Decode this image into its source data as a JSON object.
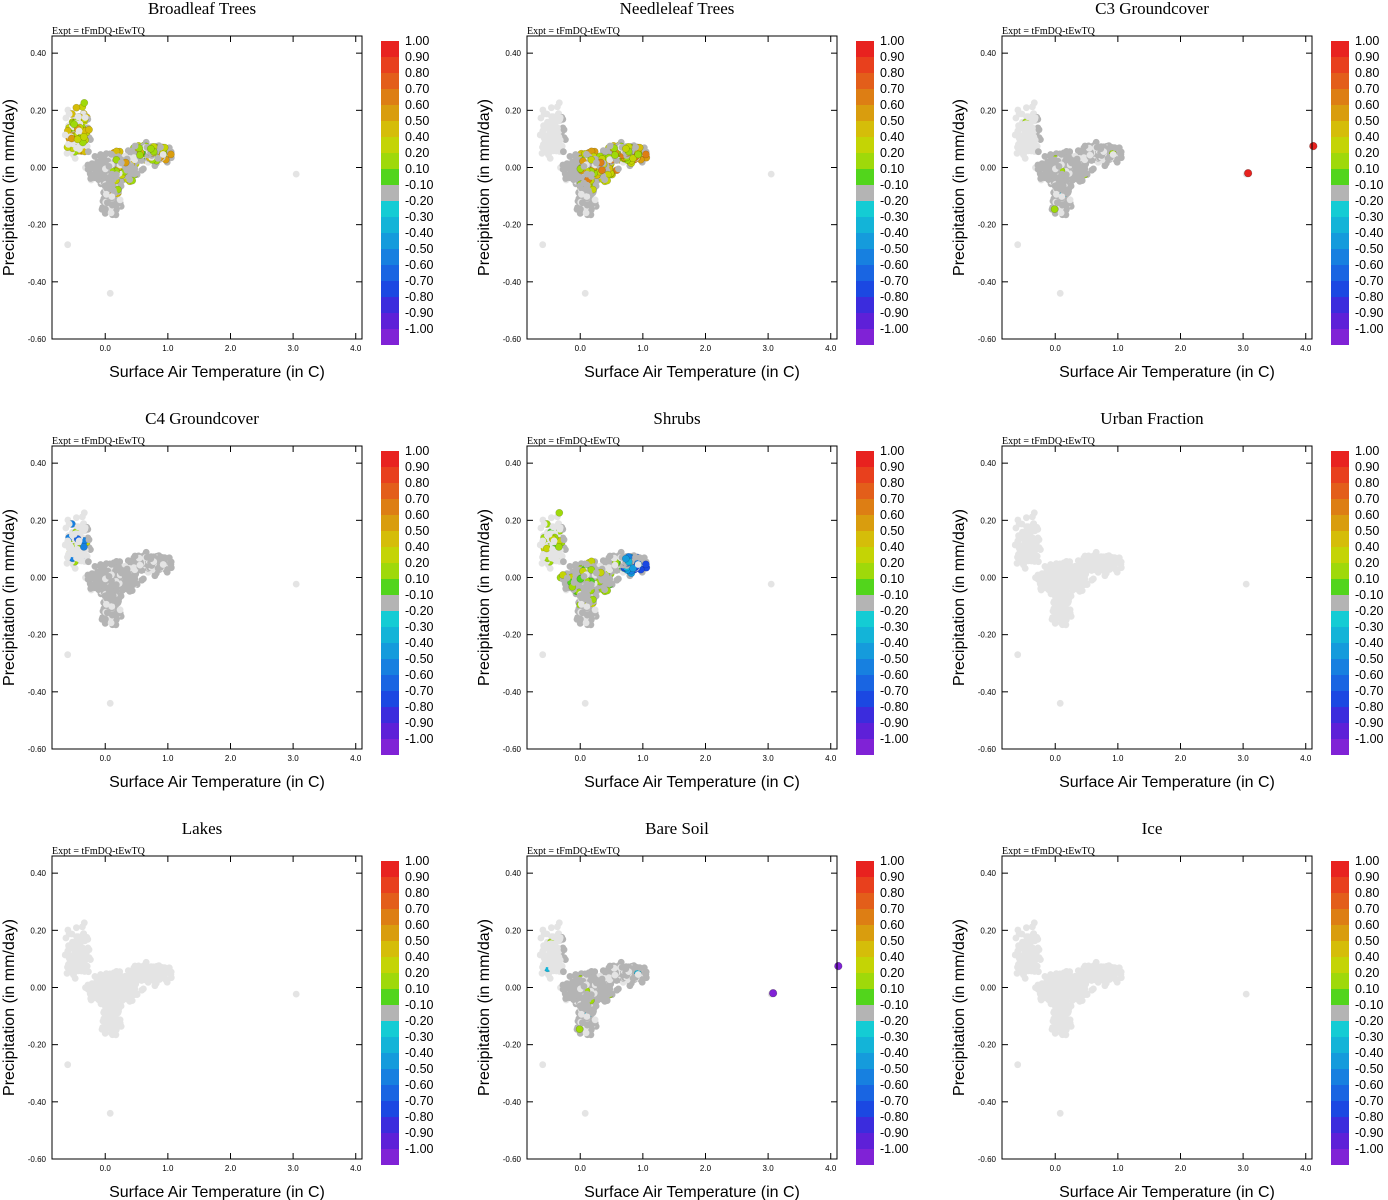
{
  "figure": {
    "x_label": "Surface Air Temperature (in C)",
    "y_label": "Precipitation (in mm/day)",
    "expt_label": "Expt = tFmDQ-tEwTQ"
  },
  "axes": {
    "xlim": [
      -0.85,
      4.1
    ],
    "ylim": [
      -0.6,
      0.46
    ],
    "xticks": [
      0.0,
      1.0,
      2.0,
      3.0,
      4.0
    ],
    "xtick_labels": [
      "0.0",
      "1.0",
      "2.0",
      "3.0",
      "4.0"
    ],
    "yticks": [
      -0.6,
      -0.4,
      -0.2,
      0.0,
      0.2,
      0.4
    ],
    "ytick_labels": [
      "-0.60",
      "-0.40",
      "-0.20",
      "0.00",
      "0.20",
      "0.40"
    ]
  },
  "colorbar": {
    "labels": [
      "1.00",
      "0.90",
      "0.80",
      "0.70",
      "0.60",
      "0.50",
      "0.40",
      "0.20",
      "0.10",
      "-0.10",
      "-0.20",
      "-0.30",
      "-0.40",
      "-0.50",
      "-0.60",
      "-0.70",
      "-0.80",
      "-0.90",
      "-1.00"
    ],
    "colors": [
      "#e8221f",
      "#e8401d",
      "#e35e1a",
      "#dd7e14",
      "#d99d0e",
      "#d5bd09",
      "#c4d405",
      "#9fd90a",
      "#52d51c",
      "#b4b4b4",
      "#14ccd4",
      "#13b4d8",
      "#159bdc",
      "#1780e0",
      "#1965e2",
      "#1b48e2",
      "#3b2cdd",
      "#5e20d8",
      "#8022d6"
    ]
  },
  "chart_data": [
    {
      "type": "scatter",
      "title": "Broadleaf Trees",
      "highlight": "broadleaf"
    },
    {
      "type": "scatter",
      "title": "Needleleaf Trees",
      "highlight": "needleleaf"
    },
    {
      "type": "scatter",
      "title": "C3 Groundcover",
      "highlight": "c3",
      "outliers": [
        {
          "x": 3.08,
          "y": -0.02,
          "v": 0.98
        },
        {
          "x": 4.12,
          "y": 0.075,
          "v": 0.95
        }
      ]
    },
    {
      "type": "scatter",
      "title": "C4 Groundcover",
      "highlight": "c4"
    },
    {
      "type": "scatter",
      "title": "Shrubs",
      "highlight": "shrubs"
    },
    {
      "type": "scatter",
      "title": "Urban Fraction",
      "highlight": "none"
    },
    {
      "type": "scatter",
      "title": "Lakes",
      "highlight": "none"
    },
    {
      "type": "scatter",
      "title": "Bare Soil",
      "highlight": "baresoil",
      "outliers": [
        {
          "x": 3.08,
          "y": -0.02,
          "v": -0.95
        },
        {
          "x": 4.12,
          "y": 0.075,
          "v": -0.95
        }
      ]
    },
    {
      "type": "scatter",
      "title": "Ice",
      "highlight": "none"
    }
  ]
}
